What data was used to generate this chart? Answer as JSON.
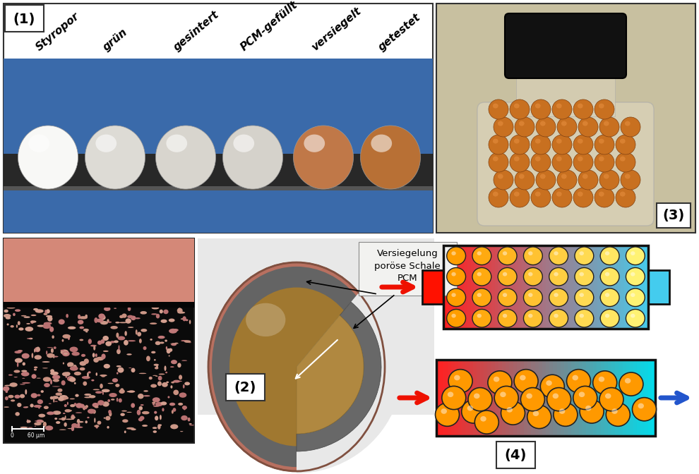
{
  "label_1": "(1)",
  "label_2": "(2)",
  "label_3": "(3)",
  "label_4": "(4)",
  "ball_labels": [
    "Styropor",
    "grün",
    "gesintert",
    "PCM-gefüllt",
    "versiegelt",
    "getestet"
  ],
  "annotation_text": "Versiegelung\nporöse Schale\nPCM",
  "bg_color": "#ffffff",
  "panel1_bg_top": "#ffffff",
  "panel1_bg_blue": "#3a6aaa",
  "panel1_border": "#333333",
  "rail_color": "#303030",
  "ball_colors": [
    "#f8f8f6",
    "#dddbd5",
    "#d8d5ce",
    "#d5d2cb",
    "#c07848",
    "#b87035"
  ],
  "mic_bg": "#0a0a0a",
  "mic_salmon": "#d48878",
  "mic_pore_colors": [
    "#111111",
    "#222222",
    "#c89080",
    "#d4a090",
    "#181818",
    "#c07878"
  ],
  "jar_bg": "#c8c0a0",
  "jar_body_color": "#ccbfa0",
  "jar_cap_color": "#151515",
  "copper_ball_color": "#c87020",
  "sphere_outer_color": "#b87060",
  "sphere_shell_color": "#606060",
  "sphere_pcm_color": "#a07830",
  "sphere_cut_color": "#808080",
  "ann_box_color": "#f0f0ee",
  "tube1_grad_left": "#ff2200",
  "tube1_grad_right": "#44ccee",
  "tube2_grad_left": "#ff2200",
  "tube2_grad_right": "#44ccee",
  "nozzle_left_color": "#ff2200",
  "nozzle_right_color": "#44ccee",
  "arrow_red_color": "#ee1100",
  "arrow_blue_color": "#2255cc",
  "tube_border_color": "#111111"
}
